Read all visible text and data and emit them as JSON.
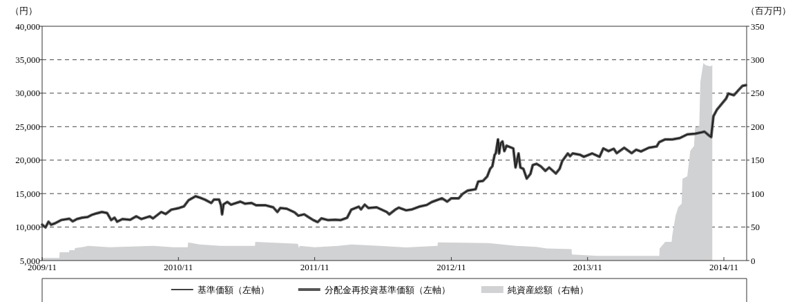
{
  "chart_data": {
    "type": "line",
    "ylabel": "（円）",
    "y2label": "（百万円）",
    "xlim": [
      "2009-11-01",
      "2015-01-01"
    ],
    "xticks": [
      {
        "value": "2009-11-01",
        "label": "2009/11"
      },
      {
        "value": "2010-11-01",
        "label": "2010/11"
      },
      {
        "value": "2011-11-01",
        "label": "2011/11"
      },
      {
        "value": "2012-11-01",
        "label": "2012/11"
      },
      {
        "value": "2013-11-01",
        "label": "2013/11"
      },
      {
        "value": "2014-11-01",
        "label": "2014/11"
      }
    ],
    "ylim": [
      5000,
      40000
    ],
    "yticks": [
      {
        "value": 5000,
        "label": "5,000"
      },
      {
        "value": 10000,
        "label": "10,000"
      },
      {
        "value": 15000,
        "label": "15,000"
      },
      {
        "value": 20000,
        "label": "20,000"
      },
      {
        "value": 25000,
        "label": "25,000"
      },
      {
        "value": 30000,
        "label": "30,000"
      },
      {
        "value": 35000,
        "label": "35,000"
      },
      {
        "value": 40000,
        "label": "40,000"
      }
    ],
    "y2lim": [
      0,
      350
    ],
    "y2ticks": [
      0,
      50,
      100,
      150,
      200,
      250,
      300,
      350
    ],
    "grid": "y",
    "legend": "bottom",
    "series": [
      {
        "name": "純資産総額（右軸）",
        "type": "area",
        "axis": "y2",
        "color": "#d1d2d4",
        "x": [
          "2009-11-01",
          "2009-12-17",
          "2009-12-18",
          "2010-01-12",
          "2010-01-13",
          "2010-01-27",
          "2010-01-28",
          "2010-02-26",
          "2010-03-03",
          "2010-05-01",
          "2010-08-25",
          "2010-10-19",
          "2010-11-26",
          "2010-11-27",
          "2010-12-28",
          "2011-02-22",
          "2011-05-25",
          "2011-05-26",
          "2011-09-17",
          "2011-09-20",
          "2011-09-22",
          "2011-11-01",
          "2012-01-04",
          "2012-02-07",
          "2012-04-22",
          "2012-07-03",
          "2012-09-25",
          "2012-09-26",
          "2013-02-09",
          "2013-04-23",
          "2013-06-17",
          "2013-07-14",
          "2013-09-19",
          "2013-09-20",
          "2013-11-28",
          "2014-05-12",
          "2014-05-13",
          "2014-05-28",
          "2014-06-14",
          "2014-06-16",
          "2014-06-25",
          "2014-07-02",
          "2014-07-11",
          "2014-07-13",
          "2014-07-26",
          "2014-08-03",
          "2014-08-13",
          "2014-08-16",
          "2014-08-27",
          "2014-08-30",
          "2014-09-07",
          "2014-09-13",
          "2014-09-26",
          "2014-10-01"
        ],
        "values": [
          4,
          4,
          12.5,
          12.5,
          15.5,
          15.5,
          18.5,
          21,
          22,
          20,
          22,
          20,
          20,
          27,
          24,
          22,
          22,
          28,
          25,
          18.5,
          22,
          20,
          22,
          24,
          22,
          19.5,
          22,
          27,
          26,
          22,
          20.5,
          18,
          17,
          9,
          7,
          7,
          18,
          28,
          28,
          38.5,
          68,
          80,
          85,
          122,
          126,
          164,
          171,
          199,
          200,
          267,
          295,
          292,
          290,
          292
        ]
      },
      {
        "name": "分配金再投資基準価額（左軸）",
        "color": "#555555",
        "x": [
          "2009-11-01",
          "2009-11-10",
          "2009-11-18",
          "2009-11-25",
          "2009-12-05",
          "2009-12-22",
          "2010-01-13",
          "2010-01-22",
          "2010-02-02",
          "2010-02-16",
          "2010-03-03",
          "2010-03-13",
          "2010-03-27",
          "2010-04-10",
          "2010-04-24",
          "2010-05-05",
          "2010-05-14",
          "2010-05-21",
          "2010-06-04",
          "2010-06-25",
          "2010-07-11",
          "2010-07-25",
          "2010-08-16",
          "2010-08-25",
          "2010-09-16",
          "2010-09-28",
          "2010-10-13",
          "2010-11-03",
          "2010-11-16",
          "2010-11-28",
          "2010-12-17",
          "2010-12-28",
          "2011-01-11",
          "2011-01-28",
          "2011-02-04",
          "2011-02-18",
          "2011-02-23",
          "2011-02-26",
          "2011-03-02",
          "2011-03-12",
          "2011-03-22",
          "2011-04-16",
          "2011-04-28",
          "2011-05-16",
          "2011-05-28",
          "2011-06-23",
          "2011-07-13",
          "2011-07-24",
          "2011-08-01",
          "2011-08-18",
          "2011-09-08",
          "2011-09-18",
          "2011-10-04",
          "2011-10-15",
          "2011-10-28",
          "2011-11-09",
          "2011-11-19",
          "2011-12-06",
          "2011-12-26",
          "2012-01-10",
          "2012-01-27",
          "2012-02-07",
          "2012-02-27",
          "2012-03-04",
          "2012-03-14",
          "2012-03-24",
          "2012-04-15",
          "2012-05-12",
          "2012-05-19",
          "2012-06-05",
          "2012-06-13",
          "2012-07-03",
          "2012-07-19",
          "2012-08-07",
          "2012-08-27",
          "2012-09-10",
          "2012-10-07",
          "2012-10-21",
          "2012-11-01",
          "2012-11-21",
          "2012-12-01",
          "2012-12-15",
          "2013-01-05",
          "2013-01-12",
          "2013-01-25",
          "2013-02-05",
          "2013-02-13",
          "2013-02-19",
          "2013-02-25",
          "2013-02-28",
          "2013-03-06",
          "2013-03-09",
          "2013-03-13",
          "2013-03-18",
          "2013-03-23",
          "2013-03-29",
          "2013-04-16",
          "2013-04-22",
          "2013-04-30",
          "2013-05-05",
          "2013-05-13",
          "2013-05-22",
          "2013-06-01",
          "2013-06-07",
          "2013-06-17",
          "2013-06-28",
          "2013-07-11",
          "2013-07-21",
          "2013-08-08",
          "2013-08-18",
          "2013-08-25",
          "2013-09-09",
          "2013-09-15",
          "2013-09-22",
          "2013-10-12",
          "2013-10-22",
          "2013-11-13",
          "2013-12-03",
          "2013-12-13",
          "2013-12-27",
          "2014-01-10",
          "2014-01-18",
          "2014-02-07",
          "2014-02-27",
          "2014-03-11",
          "2014-03-24",
          "2014-04-14",
          "2014-05-05",
          "2014-05-12",
          "2014-05-28",
          "2014-06-16",
          "2014-07-06",
          "2014-07-26",
          "2014-08-16",
          "2014-09-10",
          "2014-09-23",
          "2014-09-28",
          "2014-10-04",
          "2014-10-13",
          "2014-10-24",
          "2014-11-07",
          "2014-11-13",
          "2014-11-28",
          "2014-12-10",
          "2014-12-21",
          "2014-12-30"
        ],
        "values": [
          10350,
          9950,
          10800,
          10350,
          10550,
          11050,
          11250,
          10850,
          11200,
          11400,
          11500,
          11800,
          12050,
          12250,
          12100,
          11050,
          11400,
          10800,
          11200,
          11100,
          11600,
          11200,
          11600,
          11300,
          12250,
          11950,
          12600,
          12850,
          13100,
          14000,
          14600,
          14400,
          14100,
          13600,
          14100,
          14100,
          13250,
          11900,
          13400,
          13750,
          13350,
          13800,
          13500,
          13600,
          13250,
          13250,
          12950,
          12250,
          12850,
          12750,
          12200,
          11700,
          11900,
          11500,
          11050,
          10750,
          11300,
          11050,
          11100,
          11050,
          11400,
          12600,
          13050,
          12650,
          13350,
          12850,
          12950,
          12250,
          11900,
          12650,
          12900,
          12500,
          12650,
          13050,
          13300,
          13750,
          14300,
          13800,
          14300,
          14300,
          14950,
          15450,
          15650,
          16800,
          16900,
          17550,
          18700,
          19100,
          20800,
          21000,
          23100,
          21000,
          22500,
          22800,
          21350,
          22150,
          21750,
          18900,
          21000,
          18900,
          18700,
          17250,
          17950,
          19250,
          19450,
          19100,
          18400,
          18900,
          18000,
          18700,
          19850,
          21000,
          20600,
          21000,
          20800,
          20500,
          21000,
          20500,
          21750,
          21350,
          21700,
          21050,
          21850,
          21050,
          21550,
          21300,
          21850,
          22050,
          22700,
          23100,
          23100,
          23300,
          23850,
          23950,
          24250,
          23650,
          23450,
          26550,
          27500,
          28250,
          29200,
          29950,
          29700,
          30450,
          31100,
          31200
        ]
      },
      {
        "name": "基準価額（左軸）",
        "color": "#000000",
        "x": [
          "2009-11-01",
          "2009-11-10",
          "2009-11-18",
          "2009-11-25",
          "2009-12-05",
          "2009-12-22",
          "2010-01-13",
          "2010-01-22",
          "2010-02-02",
          "2010-02-16",
          "2010-03-03",
          "2010-03-13",
          "2010-03-27",
          "2010-04-10",
          "2010-04-24",
          "2010-05-05",
          "2010-05-14",
          "2010-05-21",
          "2010-06-04",
          "2010-06-25",
          "2010-07-11",
          "2010-07-25",
          "2010-08-16",
          "2010-08-25",
          "2010-09-16",
          "2010-09-28",
          "2010-10-13",
          "2010-11-03",
          "2010-11-16",
          "2010-11-28",
          "2010-12-17",
          "2010-12-28",
          "2011-01-11",
          "2011-01-28",
          "2011-02-04",
          "2011-02-18",
          "2011-02-23",
          "2011-02-26",
          "2011-03-02",
          "2011-03-12",
          "2011-03-22",
          "2011-04-16",
          "2011-04-28",
          "2011-05-16",
          "2011-05-28",
          "2011-06-23",
          "2011-07-13",
          "2011-07-24",
          "2011-08-01",
          "2011-08-18",
          "2011-09-08",
          "2011-09-18",
          "2011-10-04",
          "2011-10-15",
          "2011-10-28",
          "2011-11-09",
          "2011-11-19",
          "2011-12-06",
          "2011-12-26",
          "2012-01-10",
          "2012-01-27",
          "2012-02-07",
          "2012-02-27",
          "2012-03-04",
          "2012-03-14",
          "2012-03-24",
          "2012-04-15",
          "2012-05-12",
          "2012-05-19",
          "2012-06-05",
          "2012-06-13",
          "2012-07-03",
          "2012-07-19",
          "2012-08-07",
          "2012-08-27",
          "2012-09-10",
          "2012-10-07",
          "2012-10-21",
          "2012-11-01",
          "2012-11-21",
          "2012-12-01",
          "2012-12-15",
          "2013-01-05",
          "2013-01-12",
          "2013-01-25",
          "2013-02-05",
          "2013-02-13",
          "2013-02-19",
          "2013-02-25",
          "2013-02-28",
          "2013-03-06",
          "2013-03-09",
          "2013-03-13",
          "2013-03-18",
          "2013-03-23",
          "2013-03-29",
          "2013-04-16",
          "2013-04-22",
          "2013-04-30",
          "2013-05-05",
          "2013-05-13",
          "2013-05-22",
          "2013-06-01",
          "2013-06-07",
          "2013-06-17",
          "2013-06-28",
          "2013-07-11",
          "2013-07-21",
          "2013-08-08",
          "2013-08-18",
          "2013-08-25",
          "2013-09-09",
          "2013-09-15",
          "2013-09-22",
          "2013-10-12",
          "2013-10-22",
          "2013-11-13",
          "2013-12-03",
          "2013-12-13",
          "2013-12-27",
          "2014-01-10",
          "2014-01-18",
          "2014-02-07",
          "2014-02-27",
          "2014-03-11",
          "2014-03-24",
          "2014-04-14",
          "2014-05-05",
          "2014-05-12",
          "2014-05-28",
          "2014-06-16",
          "2014-07-06",
          "2014-07-26",
          "2014-08-16",
          "2014-09-10",
          "2014-09-23",
          "2014-09-28",
          "2014-10-04",
          "2014-10-13",
          "2014-10-24",
          "2014-11-07",
          "2014-11-13",
          "2014-11-28",
          "2014-12-10",
          "2014-12-21",
          "2014-12-30"
        ],
        "values": [
          10350,
          9950,
          10800,
          10350,
          10550,
          11050,
          11250,
          10850,
          11200,
          11400,
          11500,
          11800,
          12050,
          12250,
          12100,
          11050,
          11400,
          10800,
          11200,
          11100,
          11600,
          11200,
          11600,
          11300,
          12250,
          11950,
          12600,
          12850,
          13100,
          14000,
          14600,
          14400,
          14100,
          13600,
          14100,
          14100,
          13250,
          11900,
          13400,
          13750,
          13350,
          13800,
          13500,
          13600,
          13250,
          13250,
          12950,
          12250,
          12850,
          12750,
          12200,
          11700,
          11900,
          11500,
          11050,
          10750,
          11300,
          11050,
          11100,
          11050,
          11400,
          12600,
          13050,
          12650,
          13350,
          12850,
          12950,
          12250,
          11900,
          12650,
          12900,
          12500,
          12650,
          13050,
          13300,
          13750,
          14300,
          13800,
          14300,
          14300,
          14950,
          15450,
          15650,
          16800,
          16900,
          17550,
          18700,
          19100,
          20800,
          21000,
          23100,
          21000,
          22500,
          22800,
          21350,
          22150,
          21750,
          18900,
          21000,
          18900,
          18700,
          17250,
          17950,
          19250,
          19450,
          19100,
          18400,
          18900,
          18000,
          18700,
          19850,
          21000,
          20600,
          21000,
          20800,
          20500,
          21000,
          20500,
          21750,
          21350,
          21700,
          21050,
          21850,
          21050,
          21550,
          21300,
          21850,
          22050,
          22700,
          23100,
          23100,
          23300,
          23850,
          23950,
          24250,
          23650,
          23450,
          26550,
          27500,
          28250,
          29200,
          29950,
          29700,
          30450,
          31100,
          31200
        ]
      }
    ]
  }
}
